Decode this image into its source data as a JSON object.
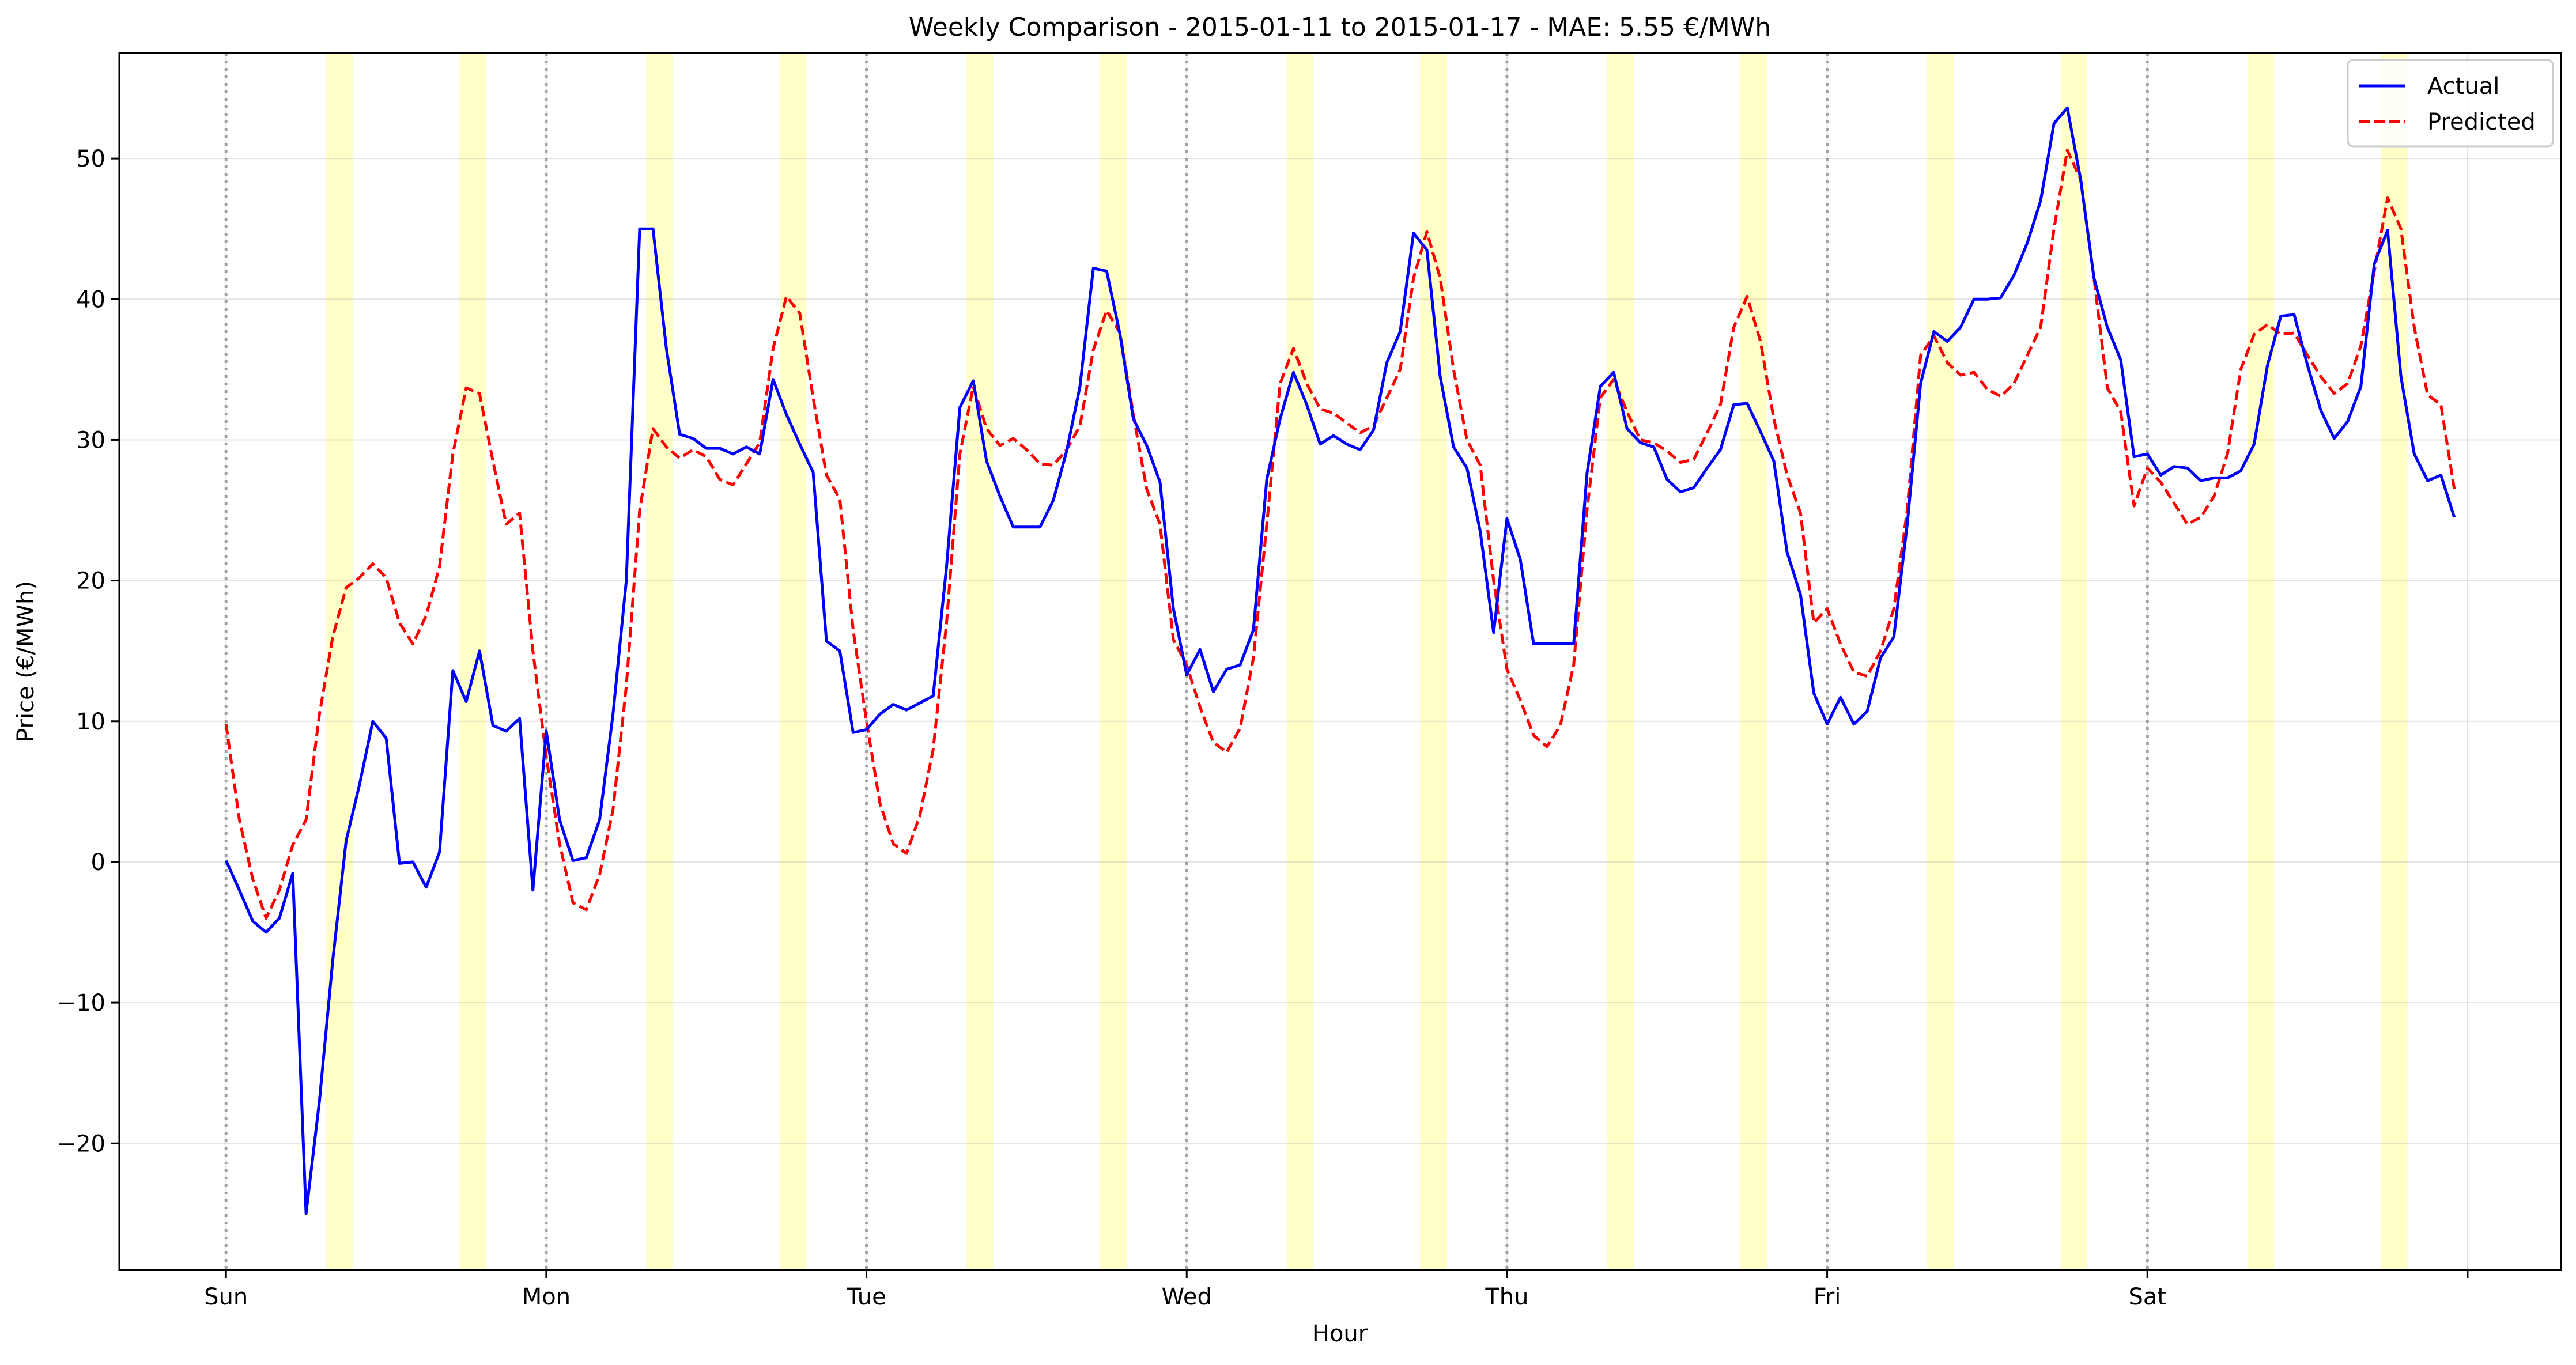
{
  "chart_data": {
    "type": "line",
    "title": "Weekly Comparison - 2015-01-11 to 2015-01-17 - MAE: 5.55 €/MWh",
    "xlabel": "Hour",
    "ylabel": "Price (€/MWh)",
    "xlim": [
      -8,
      175
    ],
    "ylim": [
      -29,
      57.5
    ],
    "grid": true,
    "legend_position": "top-right",
    "x_ticks": [
      {
        "x": 0,
        "label": "Sun"
      },
      {
        "x": 24,
        "label": "Mon"
      },
      {
        "x": 48,
        "label": "Tue"
      },
      {
        "x": 72,
        "label": "Wed"
      },
      {
        "x": 96,
        "label": "Thu"
      },
      {
        "x": 120,
        "label": "Fri"
      },
      {
        "x": 144,
        "label": "Sat"
      },
      {
        "x": 168,
        "label": ""
      }
    ],
    "y_ticks": [
      -20,
      -10,
      0,
      10,
      20,
      30,
      40,
      50
    ],
    "day_boundaries": [
      0,
      24,
      48,
      72,
      96,
      120,
      144,
      168
    ],
    "peak_bands": [
      [
        7.5,
        9.5
      ],
      [
        17.5,
        19.5
      ],
      [
        31.5,
        33.5
      ],
      [
        41.5,
        43.5
      ],
      [
        55.5,
        57.5
      ],
      [
        65.5,
        67.5
      ],
      [
        79.5,
        81.5
      ],
      [
        89.5,
        91.5
      ],
      [
        103.5,
        105.5
      ],
      [
        113.5,
        115.5
      ],
      [
        127.5,
        129.5
      ],
      [
        137.5,
        139.5
      ],
      [
        151.5,
        153.5
      ],
      [
        161.5,
        163.5
      ]
    ],
    "series": [
      {
        "name": "Actual",
        "color": "#0000ff",
        "dash": "solid",
        "values": [
          0.1,
          -2.0,
          -4.2,
          -5.0,
          -4.0,
          -0.8,
          -25.0,
          -17.0,
          -7.0,
          1.5,
          5.5,
          10.0,
          8.8,
          -0.1,
          0.0,
          -1.8,
          0.7,
          13.6,
          11.4,
          15.0,
          9.7,
          9.3,
          10.2,
          -2.0,
          9.3,
          3.0,
          0.1,
          0.3,
          3.0,
          10.5,
          20.0,
          45.0,
          45.0,
          36.5,
          30.4,
          30.1,
          29.4,
          29.4,
          29.0,
          29.5,
          29.0,
          34.3,
          31.8,
          29.7,
          27.7,
          15.7,
          15.0,
          9.2,
          9.4,
          10.5,
          11.2,
          10.8,
          11.3,
          11.8,
          21.0,
          32.3,
          34.2,
          28.5,
          26.0,
          23.8,
          23.8,
          23.8,
          25.7,
          29.2,
          33.8,
          42.2,
          42.0,
          37.5,
          31.5,
          29.6,
          27.0,
          18.0,
          13.3,
          15.1,
          12.1,
          13.7,
          14.0,
          16.5,
          27.2,
          31.5,
          34.8,
          32.5,
          29.7,
          30.3,
          29.7,
          29.3,
          30.7,
          35.5,
          37.7,
          44.7,
          43.5,
          34.5,
          29.5,
          28.0,
          23.5,
          16.3,
          24.4,
          21.5,
          15.5,
          15.5,
          15.5,
          15.5,
          27.6,
          33.8,
          34.8,
          30.8,
          29.8,
          29.5,
          27.2,
          26.3,
          26.6,
          28.0,
          29.3,
          32.5,
          32.6,
          30.6,
          28.5,
          22.0,
          19.0,
          12.0,
          9.8,
          11.7,
          9.8,
          10.7,
          14.5,
          16.0,
          24.0,
          34.0,
          37.7,
          37.0,
          38.0,
          40.0,
          40.0,
          40.1,
          41.7,
          44.0,
          47.0,
          52.5,
          53.6,
          48.5,
          41.5,
          38.0,
          35.7,
          28.8,
          29.0,
          27.5,
          28.1,
          28.0,
          27.1,
          27.3,
          27.3,
          27.8,
          29.7,
          35.3,
          38.8,
          38.9,
          35.3,
          32.1,
          30.1,
          31.3,
          33.8,
          42.5,
          44.9,
          34.5,
          29.0,
          27.1,
          27.5,
          24.5
        ]
      },
      {
        "name": "Predicted",
        "color": "#ff0000",
        "dash": "dashed",
        "values": [
          9.8,
          3.0,
          -1.2,
          -4.0,
          -2.0,
          1.2,
          3.0,
          10.5,
          16.0,
          19.5,
          20.2,
          21.2,
          20.2,
          17.0,
          15.5,
          17.5,
          21.0,
          29.0,
          33.7,
          33.3,
          28.5,
          24.0,
          24.8,
          15.0,
          7.5,
          1.3,
          -2.9,
          -3.4,
          -0.9,
          3.7,
          12.5,
          25.0,
          30.8,
          29.5,
          28.7,
          29.3,
          28.8,
          27.2,
          26.8,
          28.3,
          29.8,
          36.5,
          40.2,
          39.0,
          33.0,
          27.5,
          25.8,
          16.5,
          10.0,
          4.2,
          1.3,
          0.6,
          3.3,
          8.0,
          17.0,
          29.0,
          33.8,
          30.8,
          29.6,
          30.1,
          29.3,
          28.3,
          28.2,
          29.3,
          31.0,
          36.4,
          39.2,
          37.6,
          31.8,
          26.5,
          24.0,
          15.8,
          14.0,
          11.0,
          8.5,
          7.8,
          9.5,
          14.5,
          24.0,
          34.0,
          36.5,
          34.0,
          32.2,
          31.9,
          31.2,
          30.5,
          31.0,
          33.0,
          35.0,
          41.5,
          44.8,
          41.5,
          35.0,
          30.0,
          28.2,
          20.0,
          13.7,
          11.5,
          9.0,
          8.2,
          9.7,
          14.0,
          25.0,
          33.0,
          34.3,
          32.0,
          30.0,
          29.8,
          29.2,
          28.4,
          28.6,
          30.5,
          32.5,
          38.0,
          40.2,
          37.0,
          31.5,
          27.5,
          24.8,
          17.0,
          18.0,
          15.5,
          13.5,
          13.2,
          15.0,
          18.0,
          25.0,
          36.0,
          37.4,
          35.5,
          34.6,
          34.8,
          33.6,
          33.1,
          34.0,
          36.0,
          38.0,
          45.0,
          50.6,
          48.5,
          41.5,
          33.7,
          32.0,
          25.3,
          28.0,
          27.0,
          25.5,
          24.0,
          24.5,
          26.0,
          29.0,
          35.0,
          37.5,
          38.2,
          37.5,
          37.6,
          36.0,
          34.5,
          33.3,
          34.0,
          36.7,
          42.0,
          47.2,
          45.0,
          38.0,
          33.2,
          32.5,
          26.5
        ]
      }
    ]
  }
}
